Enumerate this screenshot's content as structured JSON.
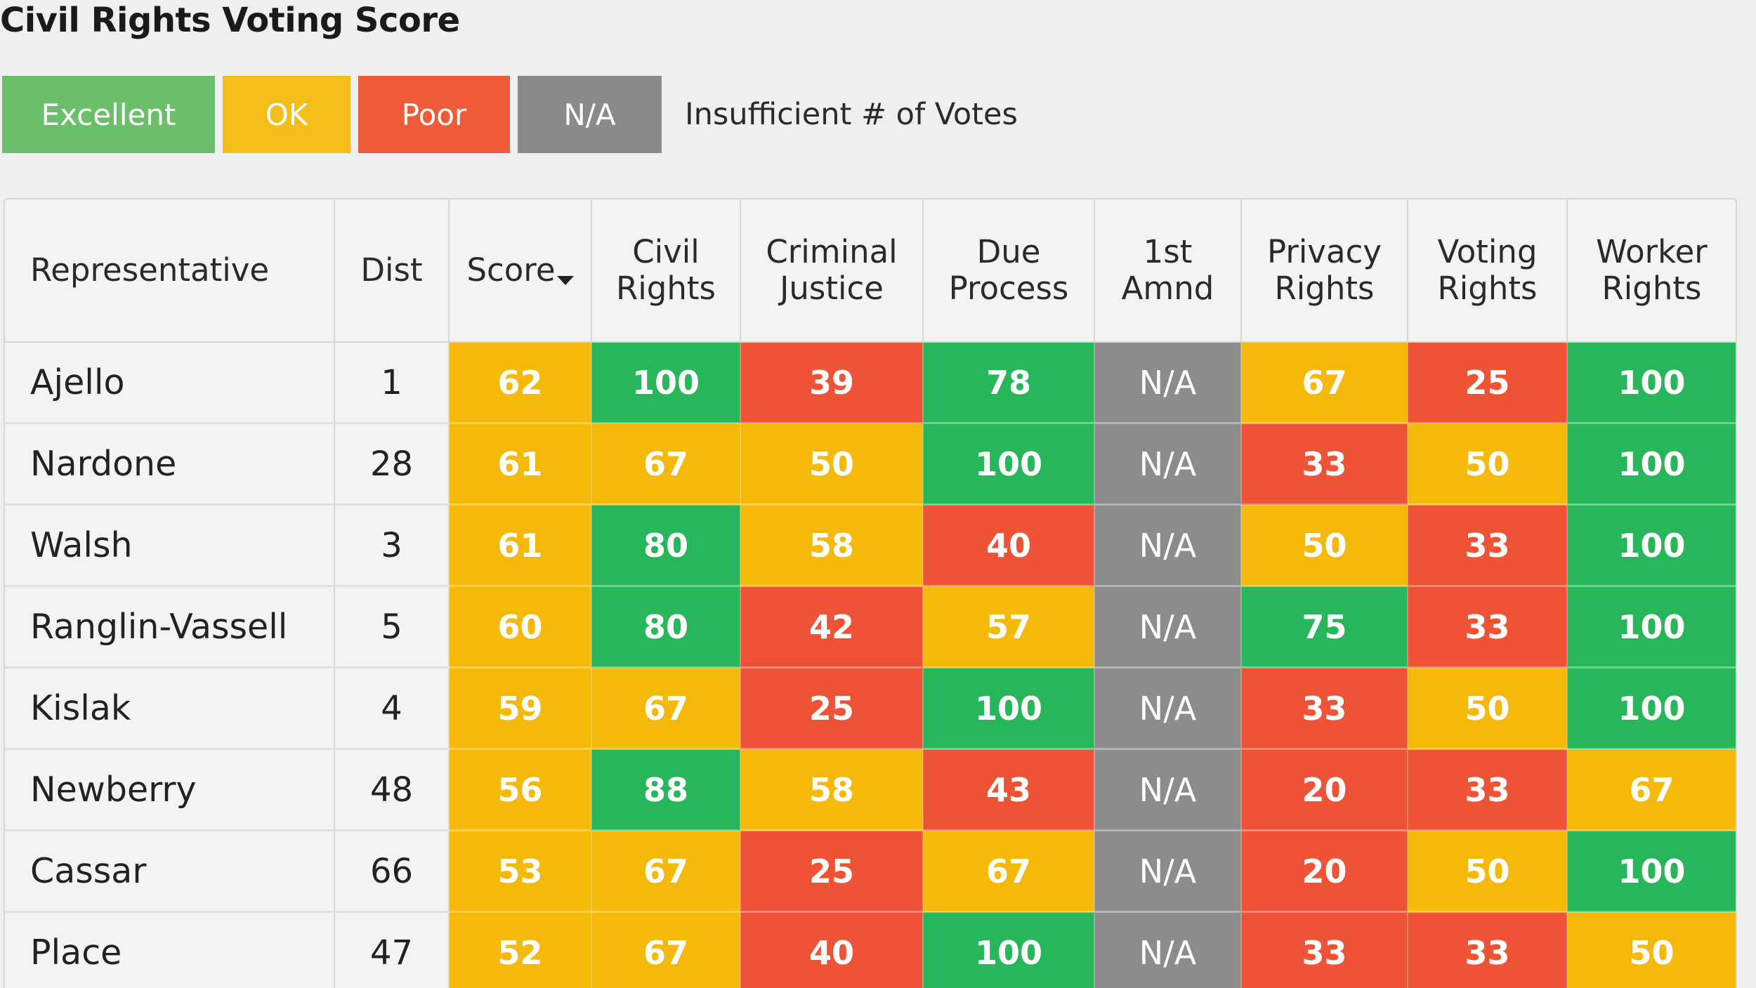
{
  "page": {
    "title": "Civil Rights Voting Score"
  },
  "legend": {
    "items": [
      {
        "label": "Excellent",
        "level": "excellent",
        "color": "#6cbf6a"
      },
      {
        "label": "OK",
        "level": "ok",
        "color": "#f4bd19"
      },
      {
        "label": "Poor",
        "level": "poor",
        "color": "#ef5a38"
      },
      {
        "label": "N/A",
        "level": "na",
        "color": "#8a8a8a"
      }
    ],
    "note": "Insufficient # of Votes"
  },
  "table": {
    "headers": {
      "representative": "Representative",
      "dist": "Dist",
      "score": "Score",
      "civil_rights": "Civil Rights",
      "criminal_justice": "Criminal Justice",
      "due_process": "Due Process",
      "first_amnd": "1st Amnd",
      "privacy_rights": "Privacy Rights",
      "voting_rights": "Voting Rights",
      "worker_rights": "Worker Rights"
    },
    "sort": {
      "column": "score",
      "direction": "descending",
      "icon": "sort-down-arrow-icon"
    },
    "rows": [
      {
        "name": "Ajello",
        "dist": "1",
        "cells": [
          {
            "value": "62",
            "level": "ok"
          },
          {
            "value": "100",
            "level": "excellent"
          },
          {
            "value": "39",
            "level": "poor"
          },
          {
            "value": "78",
            "level": "excellent"
          },
          {
            "value": "N/A",
            "level": "na"
          },
          {
            "value": "67",
            "level": "ok"
          },
          {
            "value": "25",
            "level": "poor"
          },
          {
            "value": "100",
            "level": "excellent"
          }
        ]
      },
      {
        "name": "Nardone",
        "dist": "28",
        "cells": [
          {
            "value": "61",
            "level": "ok"
          },
          {
            "value": "67",
            "level": "ok"
          },
          {
            "value": "50",
            "level": "ok"
          },
          {
            "value": "100",
            "level": "excellent"
          },
          {
            "value": "N/A",
            "level": "na"
          },
          {
            "value": "33",
            "level": "poor"
          },
          {
            "value": "50",
            "level": "ok"
          },
          {
            "value": "100",
            "level": "excellent"
          }
        ]
      },
      {
        "name": "Walsh",
        "dist": "3",
        "cells": [
          {
            "value": "61",
            "level": "ok"
          },
          {
            "value": "80",
            "level": "excellent"
          },
          {
            "value": "58",
            "level": "ok"
          },
          {
            "value": "40",
            "level": "poor"
          },
          {
            "value": "N/A",
            "level": "na"
          },
          {
            "value": "50",
            "level": "ok"
          },
          {
            "value": "33",
            "level": "poor"
          },
          {
            "value": "100",
            "level": "excellent"
          }
        ]
      },
      {
        "name": "Ranglin-Vassell",
        "dist": "5",
        "cells": [
          {
            "value": "60",
            "level": "ok"
          },
          {
            "value": "80",
            "level": "excellent"
          },
          {
            "value": "42",
            "level": "poor"
          },
          {
            "value": "57",
            "level": "ok"
          },
          {
            "value": "N/A",
            "level": "na"
          },
          {
            "value": "75",
            "level": "excellent"
          },
          {
            "value": "33",
            "level": "poor"
          },
          {
            "value": "100",
            "level": "excellent"
          }
        ]
      },
      {
        "name": "Kislak",
        "dist": "4",
        "cells": [
          {
            "value": "59",
            "level": "ok"
          },
          {
            "value": "67",
            "level": "ok"
          },
          {
            "value": "25",
            "level": "poor"
          },
          {
            "value": "100",
            "level": "excellent"
          },
          {
            "value": "N/A",
            "level": "na"
          },
          {
            "value": "33",
            "level": "poor"
          },
          {
            "value": "50",
            "level": "ok"
          },
          {
            "value": "100",
            "level": "excellent"
          }
        ]
      },
      {
        "name": "Newberry",
        "dist": "48",
        "cells": [
          {
            "value": "56",
            "level": "ok"
          },
          {
            "value": "88",
            "level": "excellent"
          },
          {
            "value": "58",
            "level": "ok"
          },
          {
            "value": "43",
            "level": "poor"
          },
          {
            "value": "N/A",
            "level": "na"
          },
          {
            "value": "20",
            "level": "poor"
          },
          {
            "value": "33",
            "level": "poor"
          },
          {
            "value": "67",
            "level": "ok"
          }
        ]
      },
      {
        "name": "Cassar",
        "dist": "66",
        "cells": [
          {
            "value": "53",
            "level": "ok"
          },
          {
            "value": "67",
            "level": "ok"
          },
          {
            "value": "25",
            "level": "poor"
          },
          {
            "value": "67",
            "level": "ok"
          },
          {
            "value": "N/A",
            "level": "na"
          },
          {
            "value": "20",
            "level": "poor"
          },
          {
            "value": "50",
            "level": "ok"
          },
          {
            "value": "100",
            "level": "excellent"
          }
        ]
      },
      {
        "name": "Place",
        "dist": "47",
        "cells": [
          {
            "value": "52",
            "level": "ok"
          },
          {
            "value": "67",
            "level": "ok"
          },
          {
            "value": "40",
            "level": "poor"
          },
          {
            "value": "100",
            "level": "excellent"
          },
          {
            "value": "N/A",
            "level": "na"
          },
          {
            "value": "33",
            "level": "poor"
          },
          {
            "value": "33",
            "level": "poor"
          },
          {
            "value": "50",
            "level": "ok"
          }
        ]
      }
    ]
  },
  "colors": {
    "excellent": "#28b65a",
    "ok": "#f5b90a",
    "poor": "#ee5335",
    "na": "#8c8c8c",
    "background": "#efefef"
  }
}
